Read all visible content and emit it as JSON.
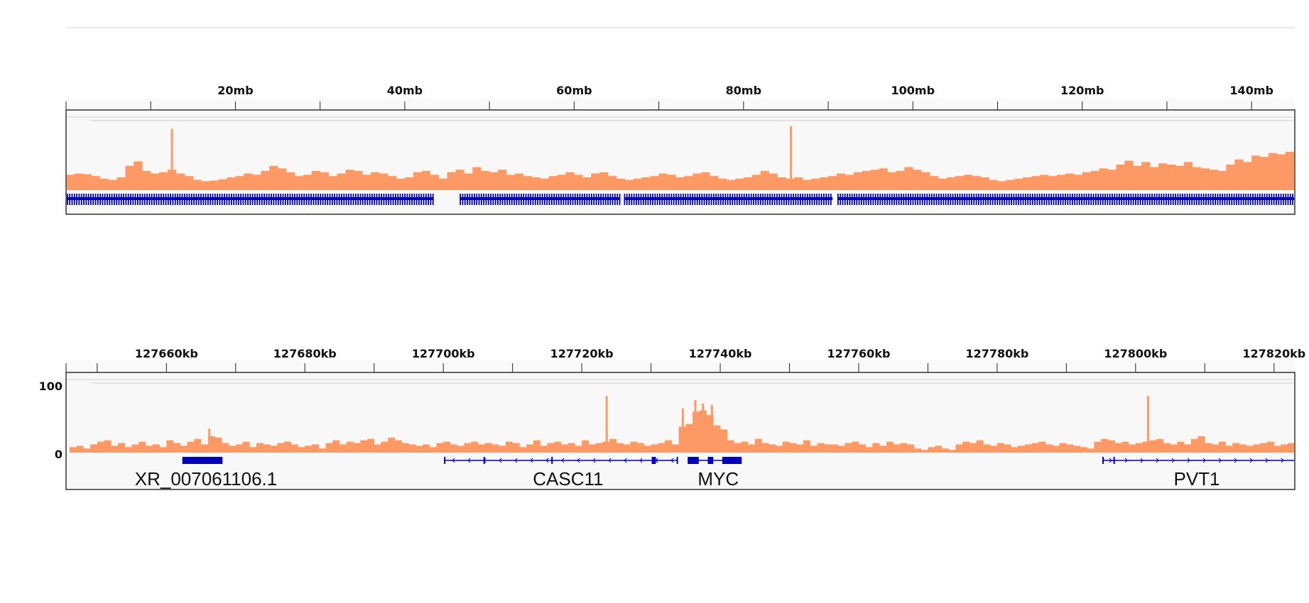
{
  "colors": {
    "coverage": "#fc9965",
    "gene": "#0000b2",
    "track_bg": "#f8f8f8",
    "border": "#333333"
  },
  "chart_data": [
    {
      "type": "area",
      "panel": "whole-chromosome",
      "x_unit": "mb",
      "xlim": [
        0,
        145.1
      ],
      "tick_labels": [
        "20mb",
        "40mb",
        "60mb",
        "80mb",
        "100mb",
        "120mb",
        "140mb"
      ],
      "tick_values": [
        20,
        40,
        60,
        80,
        100,
        120,
        140
      ],
      "minor_tick_values": [
        10,
        30,
        50,
        70,
        90,
        110,
        130
      ],
      "bin_size": 1,
      "values": [
        24,
        26,
        25,
        22,
        18,
        16,
        20,
        38,
        45,
        30,
        26,
        28,
        32,
        26,
        22,
        16,
        14,
        15,
        17,
        20,
        22,
        26,
        24,
        30,
        38,
        34,
        28,
        22,
        24,
        30,
        28,
        22,
        26,
        32,
        30,
        24,
        28,
        26,
        22,
        18,
        20,
        28,
        30,
        24,
        18,
        28,
        32,
        26,
        36,
        30,
        28,
        32,
        24,
        26,
        22,
        20,
        18,
        22,
        24,
        28,
        24,
        20,
        26,
        28,
        22,
        18,
        16,
        18,
        20,
        22,
        26,
        24,
        20,
        22,
        26,
        28,
        22,
        18,
        16,
        18,
        20,
        24,
        30,
        26,
        20,
        18,
        20,
        16,
        18,
        20,
        22,
        26,
        24,
        28,
        30,
        32,
        34,
        28,
        30,
        36,
        32,
        28,
        22,
        18,
        20,
        22,
        24,
        22,
        20,
        16,
        14,
        16,
        18,
        20,
        22,
        24,
        22,
        24,
        26,
        24,
        28,
        30,
        34,
        32,
        40,
        46,
        38,
        44,
        36,
        42,
        40,
        38,
        44,
        36,
        34,
        32,
        30,
        40,
        48,
        44,
        54,
        52,
        58,
        56,
        60,
        42
      ],
      "spikes": [
        {
          "x": 12.5,
          "value": 96
        },
        {
          "x": 85.6,
          "value": 100
        }
      ],
      "ylim": [
        0,
        100
      ],
      "gene_intervals": [
        [
          0,
          43.5
        ],
        [
          46.4,
          65.4
        ],
        [
          65.8,
          90.6
        ],
        [
          91.0,
          145.1
        ]
      ]
    },
    {
      "type": "area",
      "panel": "zoomed-region",
      "x_unit": "kb",
      "xlim": [
        127645.5,
        127823
      ],
      "tick_labels": [
        "127660kb",
        "127680kb",
        "127700kb",
        "127720kb",
        "127740kb",
        "127760kb",
        "127780kb",
        "127800kb",
        "127820kb"
      ],
      "tick_values": [
        127660,
        127680,
        127700,
        127720,
        127740,
        127760,
        127780,
        127800,
        127820
      ],
      "minor_tick_values": [
        127650,
        127670,
        127690,
        127710,
        127730,
        127750,
        127770,
        127790,
        127810
      ],
      "y_tick_labels": [
        "100",
        "0"
      ],
      "y_tick_values": [
        100,
        0
      ],
      "ylim": [
        0,
        100
      ],
      "bin_start": 127646,
      "bin_size": 1,
      "values": [
        8,
        10,
        6,
        12,
        16,
        18,
        10,
        14,
        8,
        12,
        16,
        10,
        12,
        8,
        18,
        14,
        10,
        16,
        20,
        12,
        24,
        22,
        14,
        10,
        12,
        16,
        8,
        14,
        12,
        10,
        14,
        16,
        12,
        8,
        10,
        12,
        6,
        14,
        18,
        12,
        16,
        14,
        18,
        20,
        12,
        16,
        22,
        18,
        14,
        12,
        10,
        12,
        8,
        14,
        16,
        12,
        10,
        14,
        16,
        12,
        14,
        12,
        10,
        16,
        14,
        8,
        12,
        18,
        10,
        14,
        16,
        12,
        14,
        10,
        18,
        12,
        14,
        16,
        20,
        14,
        12,
        16,
        14,
        10,
        12,
        14,
        18,
        12,
        38,
        42,
        60,
        62,
        55,
        40,
        34,
        18,
        14,
        16,
        12,
        20,
        14,
        12,
        10,
        16,
        14,
        12,
        18,
        10,
        14,
        12,
        12,
        10,
        14,
        16,
        12,
        8,
        14,
        10,
        16,
        12,
        14,
        12,
        6,
        4,
        8,
        10,
        6,
        4,
        12,
        16,
        14,
        18,
        12,
        10,
        14,
        12,
        8,
        10,
        12,
        14,
        16,
        12,
        10,
        14,
        12,
        10,
        8,
        6,
        16,
        20,
        18,
        14,
        16,
        12,
        14,
        16,
        18,
        20,
        14,
        12,
        16,
        12,
        20,
        24,
        14,
        12,
        16,
        10,
        14,
        12,
        10,
        12,
        14,
        16,
        10,
        12,
        14,
        12
      ],
      "spikes": [
        {
          "x": 127666.2,
          "value": 35
        },
        {
          "x": 127723.6,
          "value": 83
        },
        {
          "x": 127734.6,
          "value": 65
        },
        {
          "x": 127736.4,
          "value": 77
        },
        {
          "x": 127737.5,
          "value": 72
        },
        {
          "x": 127738.8,
          "value": 70
        },
        {
          "x": 127801.8,
          "value": 83
        }
      ],
      "genes": [
        {
          "name": "XR_007061106.1",
          "start": 127662.3,
          "end": 127668.1,
          "strand": "-",
          "exons": [
            [
              127662.3,
              127668.1
            ]
          ]
        },
        {
          "name": "CASC11",
          "start": 127700.2,
          "end": 127733.8,
          "strand": "-",
          "exons": [
            [
              127700.1,
              127700.3
            ],
            [
              127705.8,
              127706.0
            ],
            [
              127715.6,
              127715.8
            ],
            [
              127730.1,
              127730.7
            ],
            [
              127733.7,
              127733.9
            ]
          ]
        },
        {
          "name": "MYC",
          "start": 127735.3,
          "end": 127743.1,
          "strand": "+",
          "exons": [
            [
              127735.3,
              127736.9
            ],
            [
              127738.2,
              127739.0
            ],
            [
              127740.3,
              127743.1
            ]
          ]
        },
        {
          "name": "PVT1",
          "start": 127795.2,
          "end": 127823,
          "strand": "+",
          "exons": [
            [
              127795.2,
              127795.4
            ],
            [
              127796.8,
              127797.0
            ]
          ]
        }
      ]
    }
  ]
}
